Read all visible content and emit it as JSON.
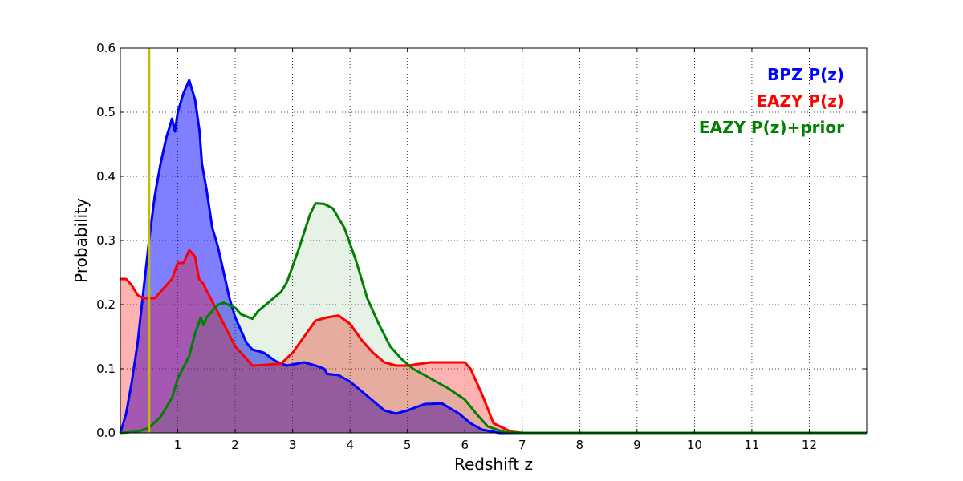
{
  "chart_data": {
    "type": "area",
    "title": "",
    "xlabel": "Redshift z",
    "ylabel": "Probability",
    "xlim": [
      0,
      13
    ],
    "ylim": [
      0,
      0.6
    ],
    "grid": true,
    "legend_placement": "top-right",
    "xticks": [
      1,
      2,
      3,
      4,
      5,
      6,
      7,
      8,
      9,
      10,
      11,
      12
    ],
    "xtick_labels": [
      "1",
      "2",
      "3",
      "4",
      "5",
      "6",
      "7",
      "8",
      "9",
      "10",
      "11",
      "12"
    ],
    "yticks": [
      0,
      0.1,
      0.2,
      0.3,
      0.4,
      0.5,
      0.6
    ],
    "ytick_labels": [
      "0.0",
      "0.1",
      "0.2",
      "0.3",
      "0.4",
      "0.5",
      "0.6"
    ],
    "vline": {
      "x": 0.5,
      "color": "#bfbf00"
    },
    "series": [
      {
        "name": "BPZ P(z)",
        "color": "#0000ff",
        "fill_opacity": 0.5,
        "points": [
          [
            0,
            0
          ],
          [
            0.1,
            0.03
          ],
          [
            0.2,
            0.08
          ],
          [
            0.3,
            0.14
          ],
          [
            0.4,
            0.22
          ],
          [
            0.5,
            0.3
          ],
          [
            0.6,
            0.37
          ],
          [
            0.7,
            0.42
          ],
          [
            0.8,
            0.46
          ],
          [
            0.85,
            0.475
          ],
          [
            0.9,
            0.49
          ],
          [
            0.95,
            0.47
          ],
          [
            1.0,
            0.5
          ],
          [
            1.1,
            0.53
          ],
          [
            1.2,
            0.55
          ],
          [
            1.3,
            0.52
          ],
          [
            1.38,
            0.47
          ],
          [
            1.42,
            0.42
          ],
          [
            1.5,
            0.38
          ],
          [
            1.6,
            0.32
          ],
          [
            1.7,
            0.29
          ],
          [
            1.8,
            0.25
          ],
          [
            1.9,
            0.21
          ],
          [
            2.0,
            0.18
          ],
          [
            2.1,
            0.16
          ],
          [
            2.2,
            0.14
          ],
          [
            2.3,
            0.13
          ],
          [
            2.5,
            0.125
          ],
          [
            2.7,
            0.112
          ],
          [
            2.9,
            0.105
          ],
          [
            3.2,
            0.11
          ],
          [
            3.4,
            0.105
          ],
          [
            3.55,
            0.1
          ],
          [
            3.6,
            0.092
          ],
          [
            3.8,
            0.09
          ],
          [
            4.0,
            0.08
          ],
          [
            4.2,
            0.065
          ],
          [
            4.4,
            0.05
          ],
          [
            4.6,
            0.035
          ],
          [
            4.8,
            0.03
          ],
          [
            5.0,
            0.035
          ],
          [
            5.3,
            0.045
          ],
          [
            5.6,
            0.046
          ],
          [
            5.9,
            0.03
          ],
          [
            6.1,
            0.015
          ],
          [
            6.3,
            0.005
          ],
          [
            6.6,
            0
          ],
          [
            13,
            0
          ]
        ]
      },
      {
        "name": "EAZY P(z)",
        "color": "#ff0000",
        "fill_opacity": 0.3,
        "points": [
          [
            0,
            0.24
          ],
          [
            0.1,
            0.24
          ],
          [
            0.2,
            0.23
          ],
          [
            0.3,
            0.215
          ],
          [
            0.4,
            0.21
          ],
          [
            0.6,
            0.21
          ],
          [
            0.7,
            0.22
          ],
          [
            0.9,
            0.24
          ],
          [
            1.0,
            0.265
          ],
          [
            1.1,
            0.265
          ],
          [
            1.2,
            0.285
          ],
          [
            1.3,
            0.275
          ],
          [
            1.37,
            0.24
          ],
          [
            1.45,
            0.232
          ],
          [
            1.5,
            0.222
          ],
          [
            1.6,
            0.205
          ],
          [
            1.8,
            0.17
          ],
          [
            2.0,
            0.135
          ],
          [
            2.2,
            0.115
          ],
          [
            2.3,
            0.105
          ],
          [
            2.5,
            0.106
          ],
          [
            2.8,
            0.108
          ],
          [
            3.0,
            0.125
          ],
          [
            3.2,
            0.15
          ],
          [
            3.4,
            0.175
          ],
          [
            3.6,
            0.18
          ],
          [
            3.8,
            0.183
          ],
          [
            4.0,
            0.17
          ],
          [
            4.2,
            0.145
          ],
          [
            4.4,
            0.125
          ],
          [
            4.6,
            0.11
          ],
          [
            4.8,
            0.105
          ],
          [
            5.0,
            0.105
          ],
          [
            5.4,
            0.11
          ],
          [
            6.0,
            0.11
          ],
          [
            6.1,
            0.1
          ],
          [
            6.3,
            0.06
          ],
          [
            6.5,
            0.015
          ],
          [
            6.8,
            0.002
          ],
          [
            7,
            0
          ],
          [
            13,
            0
          ]
        ]
      },
      {
        "name": "EAZY P(z)+prior",
        "color": "#008000",
        "fill_opacity": 0.1,
        "points": [
          [
            0,
            0
          ],
          [
            0.3,
            0.002
          ],
          [
            0.5,
            0.008
          ],
          [
            0.7,
            0.025
          ],
          [
            0.9,
            0.055
          ],
          [
            1.0,
            0.085
          ],
          [
            1.2,
            0.12
          ],
          [
            1.3,
            0.155
          ],
          [
            1.4,
            0.18
          ],
          [
            1.45,
            0.168
          ],
          [
            1.5,
            0.18
          ],
          [
            1.6,
            0.19
          ],
          [
            1.7,
            0.2
          ],
          [
            1.8,
            0.203
          ],
          [
            2.0,
            0.195
          ],
          [
            2.1,
            0.185
          ],
          [
            2.3,
            0.178
          ],
          [
            2.4,
            0.19
          ],
          [
            2.6,
            0.205
          ],
          [
            2.8,
            0.22
          ],
          [
            2.9,
            0.235
          ],
          [
            3.1,
            0.285
          ],
          [
            3.3,
            0.34
          ],
          [
            3.4,
            0.358
          ],
          [
            3.55,
            0.357
          ],
          [
            3.7,
            0.35
          ],
          [
            3.9,
            0.32
          ],
          [
            4.1,
            0.27
          ],
          [
            4.3,
            0.21
          ],
          [
            4.5,
            0.17
          ],
          [
            4.7,
            0.135
          ],
          [
            4.9,
            0.115
          ],
          [
            5.1,
            0.1
          ],
          [
            5.4,
            0.085
          ],
          [
            5.7,
            0.07
          ],
          [
            6.0,
            0.052
          ],
          [
            6.2,
            0.03
          ],
          [
            6.4,
            0.01
          ],
          [
            6.7,
            0.001
          ],
          [
            7,
            0
          ],
          [
            13,
            0
          ]
        ]
      }
    ]
  }
}
